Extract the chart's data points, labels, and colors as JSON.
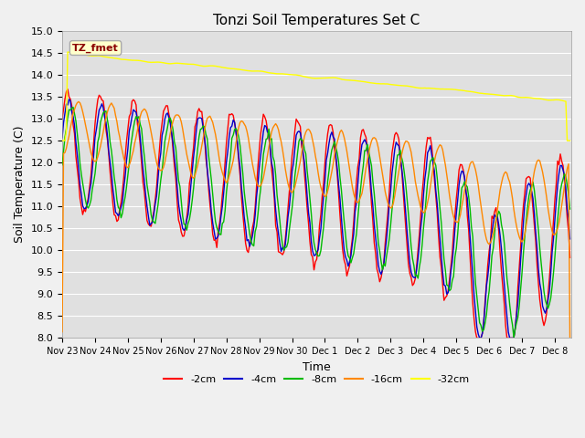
{
  "title": "Tonzi Soil Temperatures Set C",
  "xlabel": "Time",
  "ylabel": "Soil Temperature (C)",
  "ylim": [
    8.0,
    15.0
  ],
  "yticks": [
    8.0,
    8.5,
    9.0,
    9.5,
    10.0,
    10.5,
    11.0,
    11.5,
    12.0,
    12.5,
    13.0,
    13.5,
    14.0,
    14.5,
    15.0
  ],
  "colors": {
    "-2cm": "#ff0000",
    "-4cm": "#0000cc",
    "-8cm": "#00bb00",
    "-16cm": "#ff8800",
    "-32cm": "#ffff00"
  },
  "legend_labels": [
    "-2cm",
    "-4cm",
    "-8cm",
    "-16cm",
    "-32cm"
  ],
  "annotation_box": "TZ_fmet",
  "background_color": "#e0e0e0",
  "x_tick_labels": [
    "Nov 23",
    "Nov 24",
    "Nov 25",
    "Nov 26",
    "Nov 27",
    "Nov 28",
    "Nov 29",
    "Nov 30",
    "Dec 1",
    "Dec 2",
    "Dec 3",
    "Dec 4",
    "Dec 5",
    "Dec 6",
    "Dec 7",
    "Dec 8"
  ]
}
